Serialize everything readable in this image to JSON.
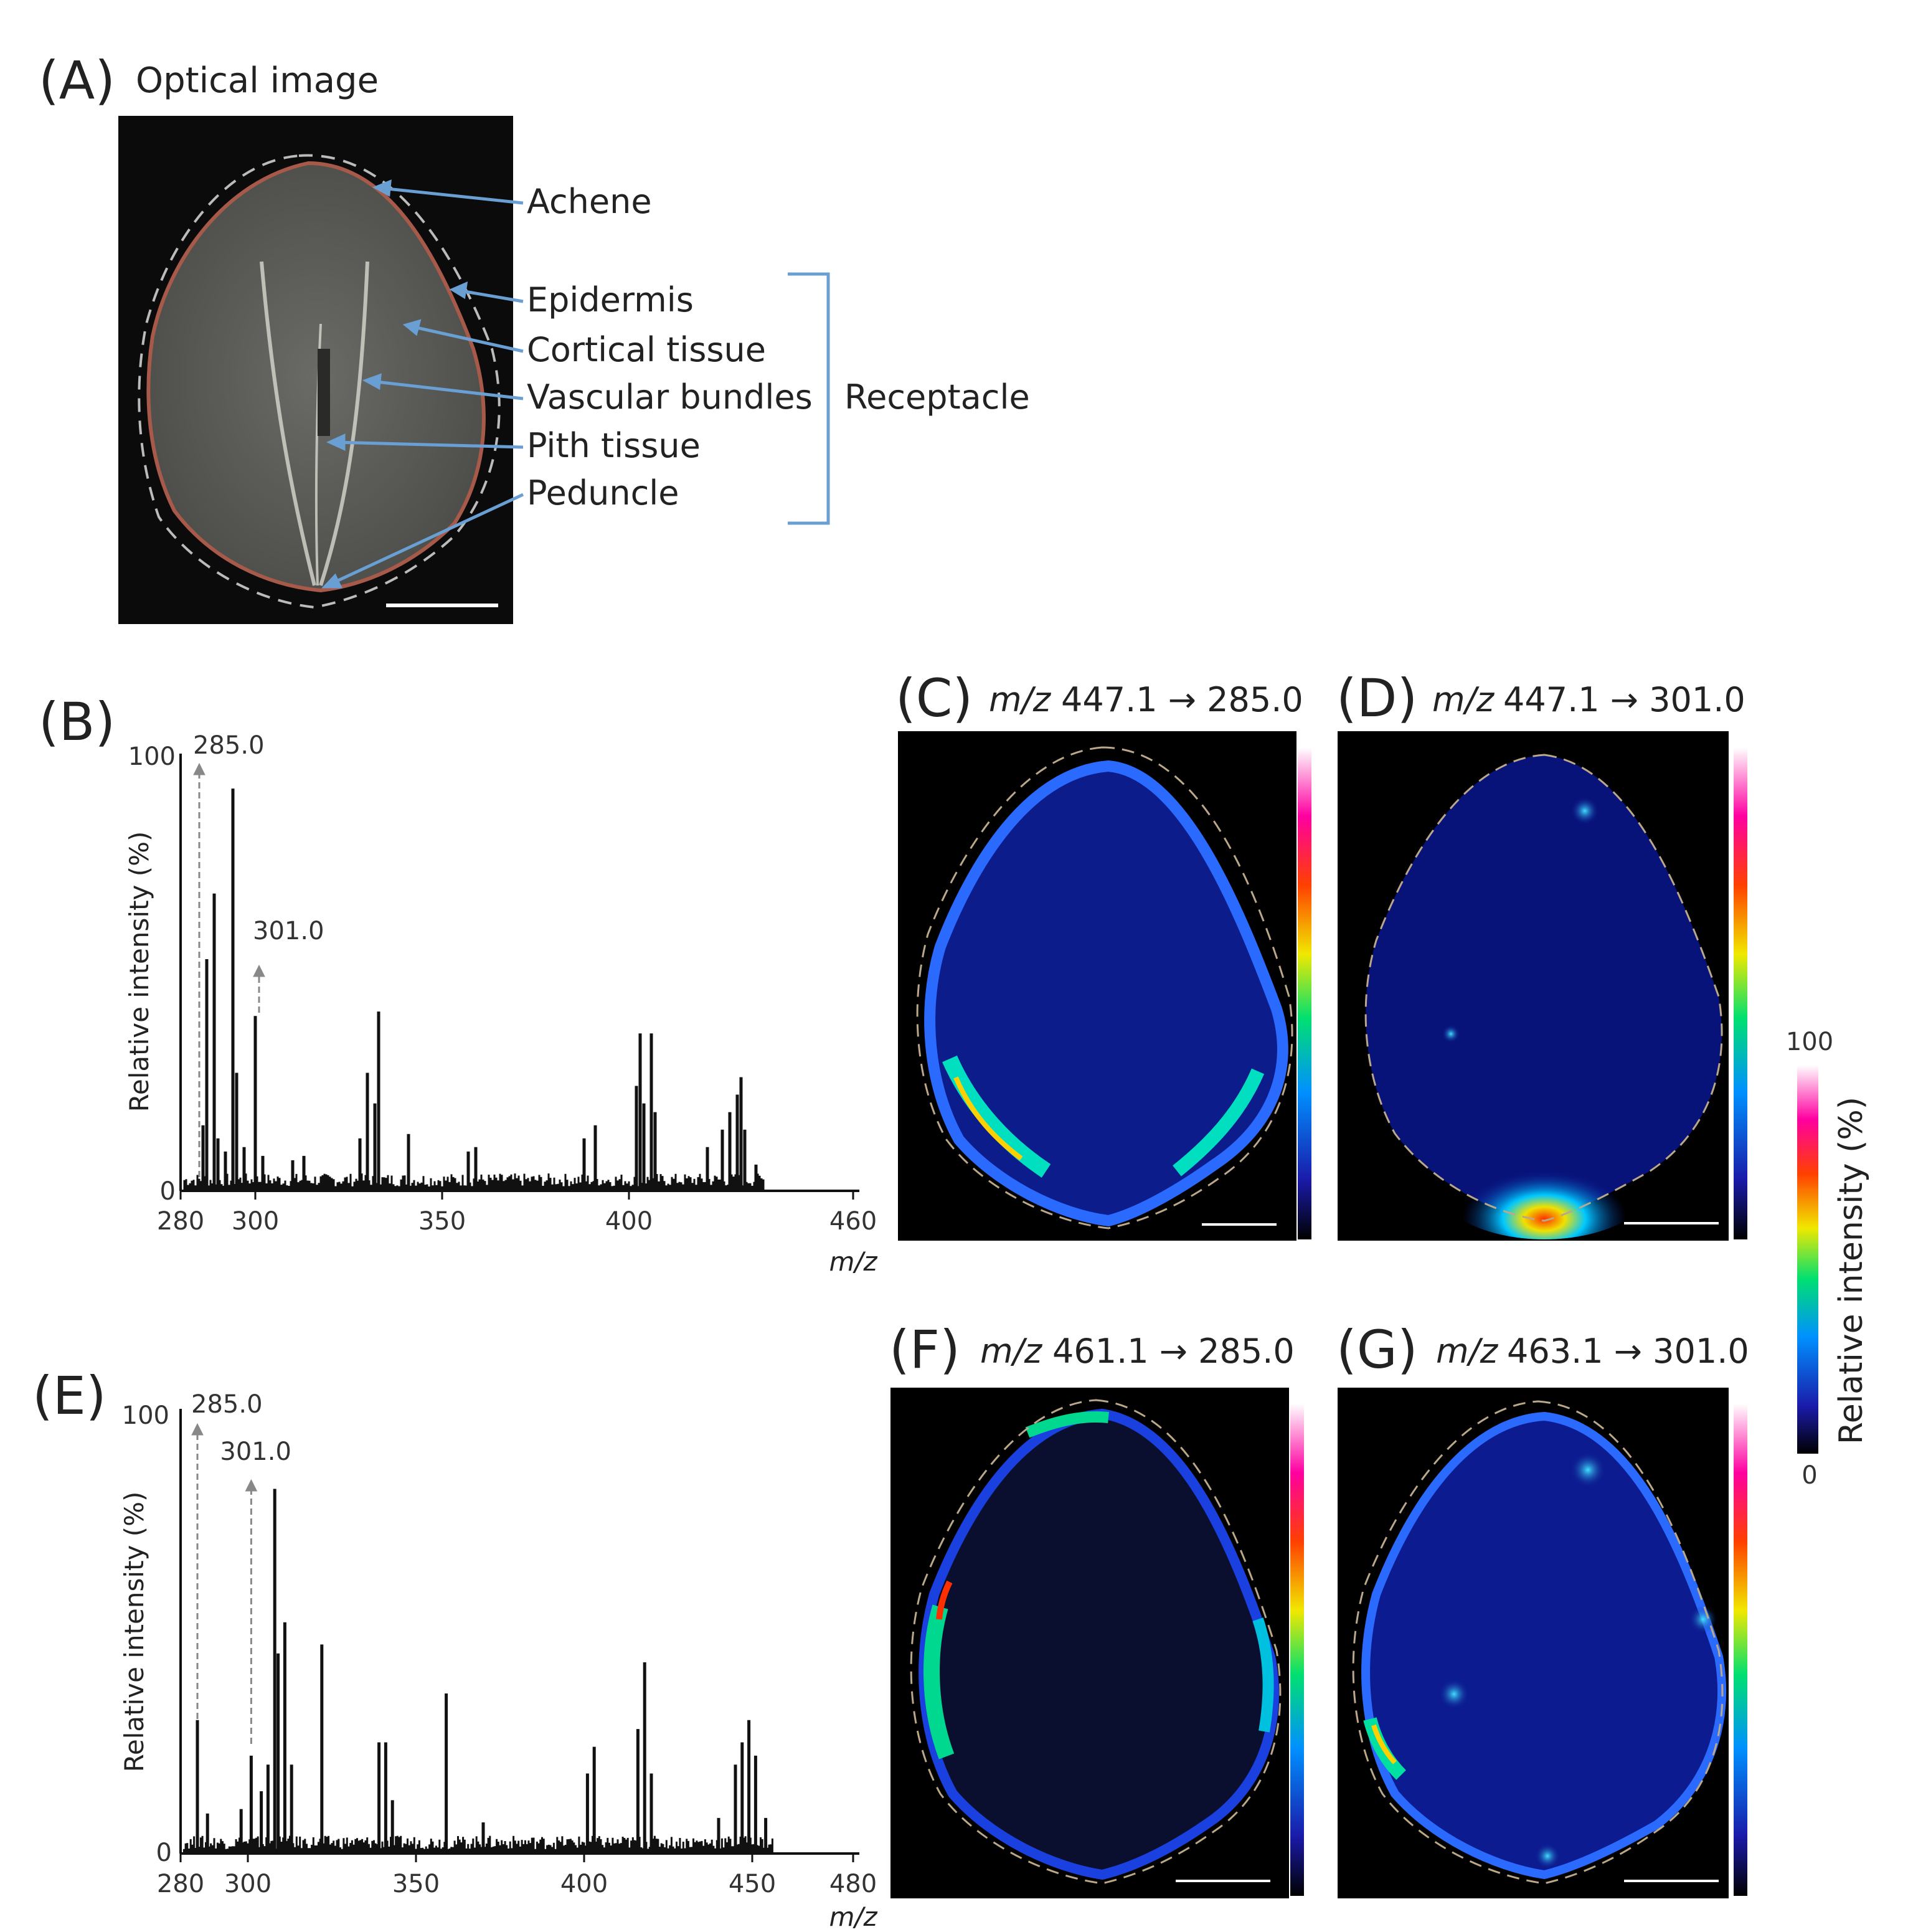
{
  "panels": {
    "A": {
      "label": "(A)",
      "title": "Optical image",
      "annotations": [
        "Achene",
        "Epidermis",
        "Cortical tissue",
        "Vascular bundles",
        "Pith tissue",
        "Peduncle"
      ],
      "group_label": "Receptacle"
    },
    "B": {
      "label": "(B)",
      "peak_labels": [
        "285.0",
        "301.0"
      ]
    },
    "C": {
      "label": "(C)",
      "mz": "m/z",
      "transition": "447.1 → 285.0"
    },
    "D": {
      "label": "(D)",
      "mz": "m/z",
      "transition": "447.1 → 301.0"
    },
    "E": {
      "label": "(E)",
      "peak_labels": [
        "285.0",
        "301.0"
      ]
    },
    "F": {
      "label": "(F)",
      "mz": "m/z",
      "transition": "461.1 → 285.0"
    },
    "G": {
      "label": "(G)",
      "mz": "m/z",
      "transition": "463.1 → 301.0"
    }
  },
  "colorbar": {
    "label": "Relative intensity (%)",
    "max": "100",
    "min": "0"
  },
  "colors": {
    "annotation_line": "#6a9fd4",
    "bracket": "#6a9fd4",
    "image_bg": "#000000"
  },
  "chart_data": [
    {
      "type": "bar",
      "panel": "B",
      "ylabel": "Relative intensity (%)",
      "xlabel": "m/z",
      "xlim": [
        280,
        460
      ],
      "ylim": [
        0,
        100
      ],
      "x_ticks": [
        "280",
        "300",
        "350",
        "400",
        "460"
      ],
      "y_ticks": [
        "0",
        "100"
      ],
      "annotations": [
        {
          "text": "285.0",
          "x": 285.0
        },
        {
          "text": "301.0",
          "x": 301.0
        }
      ],
      "peaks": [
        {
          "x": 286,
          "y": 15
        },
        {
          "x": 287,
          "y": 53
        },
        {
          "x": 289,
          "y": 68
        },
        {
          "x": 290,
          "y": 12
        },
        {
          "x": 292,
          "y": 9
        },
        {
          "x": 294,
          "y": 92
        },
        {
          "x": 295,
          "y": 27
        },
        {
          "x": 297,
          "y": 10
        },
        {
          "x": 300,
          "y": 40
        },
        {
          "x": 302,
          "y": 8
        },
        {
          "x": 310,
          "y": 7
        },
        {
          "x": 313,
          "y": 8
        },
        {
          "x": 328,
          "y": 12
        },
        {
          "x": 330,
          "y": 27
        },
        {
          "x": 332,
          "y": 20
        },
        {
          "x": 333,
          "y": 41
        },
        {
          "x": 341,
          "y": 13
        },
        {
          "x": 357,
          "y": 9
        },
        {
          "x": 359,
          "y": 10
        },
        {
          "x": 388,
          "y": 12
        },
        {
          "x": 391,
          "y": 15
        },
        {
          "x": 402,
          "y": 24
        },
        {
          "x": 403,
          "y": 36
        },
        {
          "x": 404,
          "y": 20
        },
        {
          "x": 406,
          "y": 36
        },
        {
          "x": 407,
          "y": 18
        },
        {
          "x": 421,
          "y": 10
        },
        {
          "x": 425,
          "y": 14
        },
        {
          "x": 427,
          "y": 18
        },
        {
          "x": 429,
          "y": 22
        },
        {
          "x": 430,
          "y": 26
        },
        {
          "x": 431,
          "y": 14
        },
        {
          "x": 434,
          "y": 6
        }
      ]
    },
    {
      "type": "bar",
      "panel": "E",
      "ylabel": "Relative intensity (%)",
      "xlabel": "m/z",
      "xlim": [
        280,
        480
      ],
      "ylim": [
        0,
        100
      ],
      "x_ticks": [
        "280",
        "300",
        "350",
        "400",
        "450",
        "480"
      ],
      "y_ticks": [
        "0",
        "100"
      ],
      "annotations": [
        {
          "text": "285.0",
          "x": 285.0
        },
        {
          "text": "301.0",
          "x": 301.0
        }
      ],
      "peaks": [
        {
          "x": 285,
          "y": 30
        },
        {
          "x": 288,
          "y": 9
        },
        {
          "x": 298,
          "y": 10
        },
        {
          "x": 301,
          "y": 22
        },
        {
          "x": 304,
          "y": 14
        },
        {
          "x": 306,
          "y": 20
        },
        {
          "x": 308,
          "y": 82
        },
        {
          "x": 309,
          "y": 45
        },
        {
          "x": 311,
          "y": 52
        },
        {
          "x": 313,
          "y": 20
        },
        {
          "x": 322,
          "y": 47
        },
        {
          "x": 339,
          "y": 25
        },
        {
          "x": 341,
          "y": 25
        },
        {
          "x": 343,
          "y": 12
        },
        {
          "x": 359,
          "y": 36
        },
        {
          "x": 370,
          "y": 7
        },
        {
          "x": 401,
          "y": 18
        },
        {
          "x": 403,
          "y": 24
        },
        {
          "x": 416,
          "y": 28
        },
        {
          "x": 418,
          "y": 43
        },
        {
          "x": 420,
          "y": 18
        },
        {
          "x": 440,
          "y": 8
        },
        {
          "x": 445,
          "y": 20
        },
        {
          "x": 447,
          "y": 25
        },
        {
          "x": 449,
          "y": 30
        },
        {
          "x": 451,
          "y": 22
        },
        {
          "x": 454,
          "y": 8
        }
      ]
    }
  ]
}
